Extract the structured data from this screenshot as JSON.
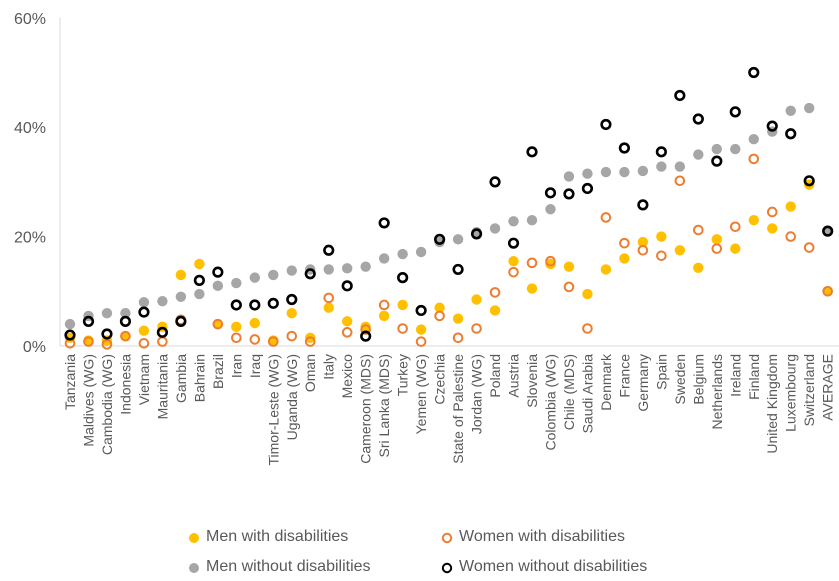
{
  "chart_data": {
    "type": "scatter",
    "title": "",
    "xlabel": "",
    "ylabel": "",
    "ylim": [
      0,
      60
    ],
    "y_ticks": [
      "0%",
      "20%",
      "40%",
      "60%"
    ],
    "y_tick_values": [
      0,
      20,
      40,
      60
    ],
    "grid": false,
    "legend_position": "bottom",
    "categories": [
      "Tanzania",
      "Maldives (WG)",
      "Cambodia (WG)",
      "Indonesia",
      "Vietnam",
      "Mauritania",
      "Gambia",
      "Bahrain",
      "Brazil",
      "Iran",
      "Iraq",
      "Timor-Leste (WG)",
      "Uganda (WG)",
      "Oman",
      "Italy",
      "Mexico",
      "Cameroon (MDS)",
      "Sri Lanka (MDS)",
      "Turkey",
      "Yemen (WG)",
      "Czechia",
      "State of Palestine",
      "Jordan (WG)",
      "Poland",
      "Austria",
      "Slovenia",
      "Colombia (WG)",
      "Chile (MDS)",
      "Saudi Arabia",
      "Denmark",
      "France",
      "Germany",
      "Spain",
      "Sweden",
      "Belgium",
      "Netherlands",
      "Ireland",
      "Finland",
      "United Kingdom",
      "Luxembourg",
      "Switzerland",
      "AVERAGE"
    ],
    "series": [
      {
        "name": "Men with disabilities",
        "color": "#FFC000",
        "marker": "filled-circle",
        "values": [
          1.5,
          1.0,
          1.0,
          1.8,
          2.8,
          3.5,
          13.0,
          15.0,
          4.0,
          3.5,
          4.2,
          1.0,
          6.0,
          1.5,
          7.0,
          4.5,
          3.5,
          5.5,
          7.5,
          3.0,
          7.0,
          5.0,
          8.5,
          6.5,
          15.5,
          10.5,
          15.0,
          14.5,
          9.5,
          14.0,
          16.0,
          19.0,
          20.0,
          17.5,
          14.3,
          19.5,
          17.8,
          23.0,
          21.5,
          25.5,
          29.5,
          10.0
        ]
      },
      {
        "name": "Women with disabilities",
        "color": "#ED7D31",
        "marker": "open-circle",
        "values": [
          0.5,
          0.8,
          0.3,
          1.8,
          0.5,
          0.8,
          4.8,
          12.0,
          4.0,
          1.5,
          1.2,
          0.8,
          1.8,
          0.8,
          8.8,
          2.5,
          3.0,
          7.5,
          3.2,
          0.8,
          5.5,
          1.5,
          3.2,
          9.8,
          13.5,
          15.2,
          15.5,
          10.8,
          3.2,
          23.5,
          18.8,
          17.5,
          16.5,
          30.2,
          21.2,
          17.8,
          21.8,
          34.2,
          24.5,
          20.0,
          18.0,
          10.0
        ]
      },
      {
        "name": "Men without disabilities",
        "color": "#A6A6A6",
        "marker": "filled-circle",
        "values": [
          4.0,
          5.5,
          6.0,
          6.0,
          8.0,
          8.2,
          9.0,
          9.5,
          11.0,
          11.5,
          12.5,
          13.0,
          13.8,
          14.0,
          14.0,
          14.2,
          14.5,
          16.0,
          16.8,
          17.2,
          19.0,
          19.5,
          20.8,
          21.5,
          22.8,
          23.0,
          25.0,
          31.0,
          31.5,
          31.8,
          31.8,
          32.0,
          32.8,
          32.8,
          35.0,
          36.0,
          36.0,
          37.8,
          39.2,
          43.0,
          43.5,
          21.0
        ]
      },
      {
        "name": "Women without disabilities",
        "color": "#000000",
        "marker": "open-circle",
        "values": [
          2.0,
          4.5,
          2.2,
          4.5,
          6.2,
          2.5,
          4.5,
          12.0,
          13.5,
          7.5,
          7.5,
          7.8,
          8.5,
          13.2,
          17.5,
          11.0,
          1.8,
          22.5,
          12.5,
          6.5,
          19.5,
          14.0,
          20.5,
          30.0,
          18.8,
          35.5,
          28.0,
          27.8,
          28.8,
          40.5,
          36.2,
          25.8,
          35.5,
          45.8,
          41.5,
          33.8,
          42.8,
          50.0,
          40.2,
          38.8,
          30.2,
          21.0
        ]
      }
    ]
  }
}
